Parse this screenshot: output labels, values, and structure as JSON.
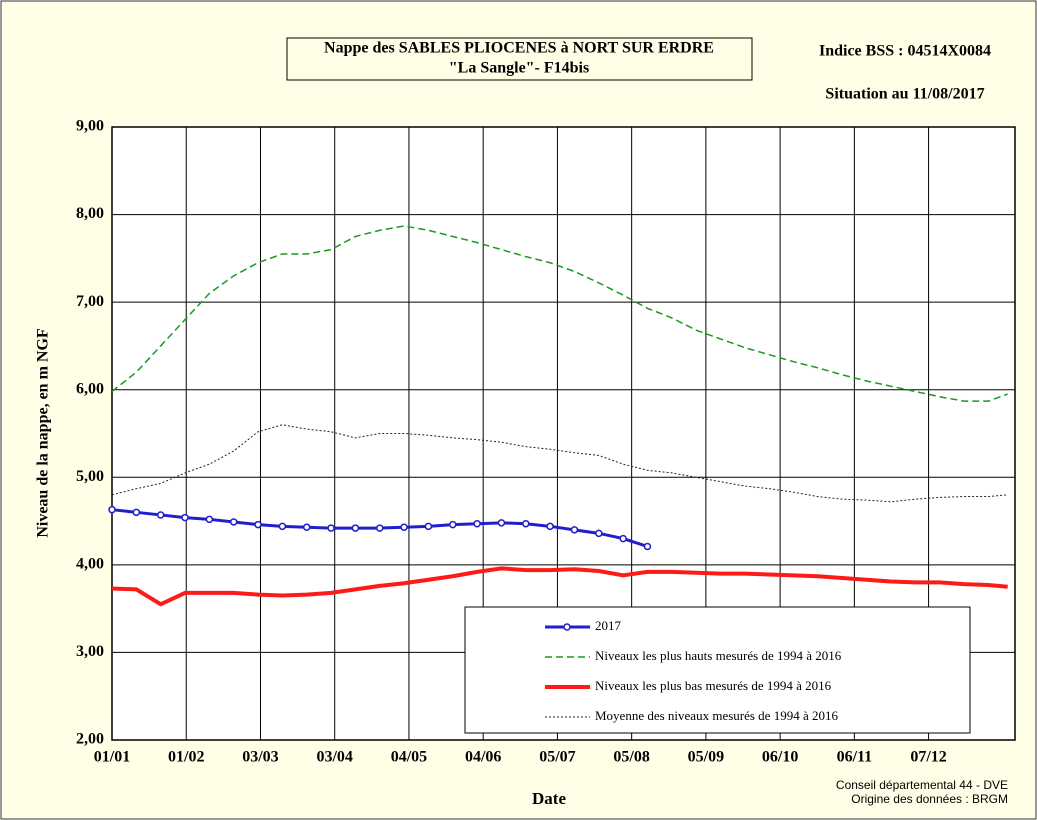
{
  "chart_data": {
    "type": "line",
    "title": [
      "Nappe des SABLES PLIOCENES à NORT SUR ERDRE",
      "\"La Sangle\"-  F14bis"
    ],
    "station": "Indice BSS : 04514X0084",
    "subtitle": "Situation au 11/08/2017",
    "y_label": "Niveau de la nappe, en m NGF",
    "x_label": "Date",
    "credits": [
      "Conseil départemental 44 - DVE",
      "Origine des données : BRGM"
    ],
    "x": [
      0,
      10,
      20,
      30,
      40,
      50,
      60,
      70,
      80,
      90,
      100,
      110,
      120,
      130,
      140,
      150,
      160,
      170,
      180,
      190,
      200,
      210,
      220,
      230,
      240,
      250,
      260,
      270,
      280,
      290,
      300,
      310,
      320,
      330,
      340,
      350,
      360,
      368
    ],
    "xlim": [
      0,
      371
    ],
    "xticks": [
      {
        "value": 0,
        "label": "01/01"
      },
      {
        "value": 30.5,
        "label": "01/02"
      },
      {
        "value": 61,
        "label": "03/03"
      },
      {
        "value": 91.5,
        "label": "03/04"
      },
      {
        "value": 122,
        "label": "04/05"
      },
      {
        "value": 152.5,
        "label": "04/06"
      },
      {
        "value": 183,
        "label": "05/07"
      },
      {
        "value": 213.5,
        "label": "05/08"
      },
      {
        "value": 244,
        "label": "05/09"
      },
      {
        "value": 274.5,
        "label": "06/10"
      },
      {
        "value": 305,
        "label": "06/11"
      },
      {
        "value": 335.5,
        "label": "07/12"
      }
    ],
    "ylim": [
      2,
      9
    ],
    "yticks": [
      {
        "value": 2,
        "label": "2,00"
      },
      {
        "value": 3,
        "label": "3,00"
      },
      {
        "value": 4,
        "label": "4,00"
      },
      {
        "value": 5,
        "label": "5,00"
      },
      {
        "value": 6,
        "label": "6,00"
      },
      {
        "value": 7,
        "label": "7,00"
      },
      {
        "value": 8,
        "label": "8,00"
      },
      {
        "value": 9,
        "label": "9,00"
      }
    ],
    "grid": true,
    "legend": "bottom-right",
    "series": [
      {
        "name": "2017",
        "color": "#1f1fcc",
        "style": "markers",
        "width": 3,
        "values": [
          4.63,
          4.6,
          4.57,
          4.54,
          4.52,
          4.49,
          4.46,
          4.44,
          4.43,
          4.42,
          4.42,
          4.42,
          4.43,
          4.44,
          4.46,
          4.47,
          4.48,
          4.47,
          4.44,
          4.4,
          4.36,
          4.3,
          4.21,
          null,
          null,
          null,
          null,
          null,
          null,
          null,
          null,
          null,
          null,
          null,
          null,
          null,
          null,
          null
        ]
      },
      {
        "name": "Niveaux les plus hauts mesurés de 1994 à 2016",
        "color": "#1a9a1a",
        "style": "dashed",
        "width": 1.5,
        "values": [
          5.98,
          6.2,
          6.5,
          6.8,
          7.1,
          7.3,
          7.45,
          7.55,
          7.55,
          7.6,
          7.75,
          7.82,
          7.87,
          7.82,
          7.75,
          7.68,
          7.6,
          7.52,
          7.45,
          7.35,
          7.22,
          7.08,
          6.93,
          6.82,
          6.68,
          6.58,
          6.48,
          6.4,
          6.32,
          6.25,
          6.17,
          6.1,
          6.04,
          5.98,
          5.92,
          5.87,
          5.87,
          5.95
        ]
      },
      {
        "name": "Niveaux les plus bas mesurés de 1994 à 2016",
        "color": "#ff1a1a",
        "style": "solid",
        "width": 4,
        "values": [
          3.73,
          3.72,
          3.55,
          3.68,
          3.68,
          3.68,
          3.66,
          3.65,
          3.66,
          3.68,
          3.72,
          3.76,
          3.79,
          3.83,
          3.87,
          3.92,
          3.96,
          3.94,
          3.94,
          3.95,
          3.93,
          3.88,
          3.92,
          3.92,
          3.91,
          3.9,
          3.9,
          3.89,
          3.88,
          3.87,
          3.85,
          3.83,
          3.81,
          3.8,
          3.8,
          3.78,
          3.77,
          3.75
        ]
      },
      {
        "name": "Moyenne des niveaux mesurés de 1994 à 2016",
        "color": "#222222",
        "style": "dotted",
        "width": 1,
        "values": [
          4.8,
          4.87,
          4.93,
          5.05,
          5.15,
          5.3,
          5.52,
          5.6,
          5.55,
          5.52,
          5.45,
          5.5,
          5.5,
          5.48,
          5.45,
          5.43,
          5.4,
          5.35,
          5.32,
          5.28,
          5.25,
          5.15,
          5.08,
          5.05,
          5.0,
          4.95,
          4.9,
          4.87,
          4.83,
          4.78,
          4.75,
          4.74,
          4.72,
          4.75,
          4.77,
          4.78,
          4.78,
          4.8
        ]
      }
    ]
  }
}
